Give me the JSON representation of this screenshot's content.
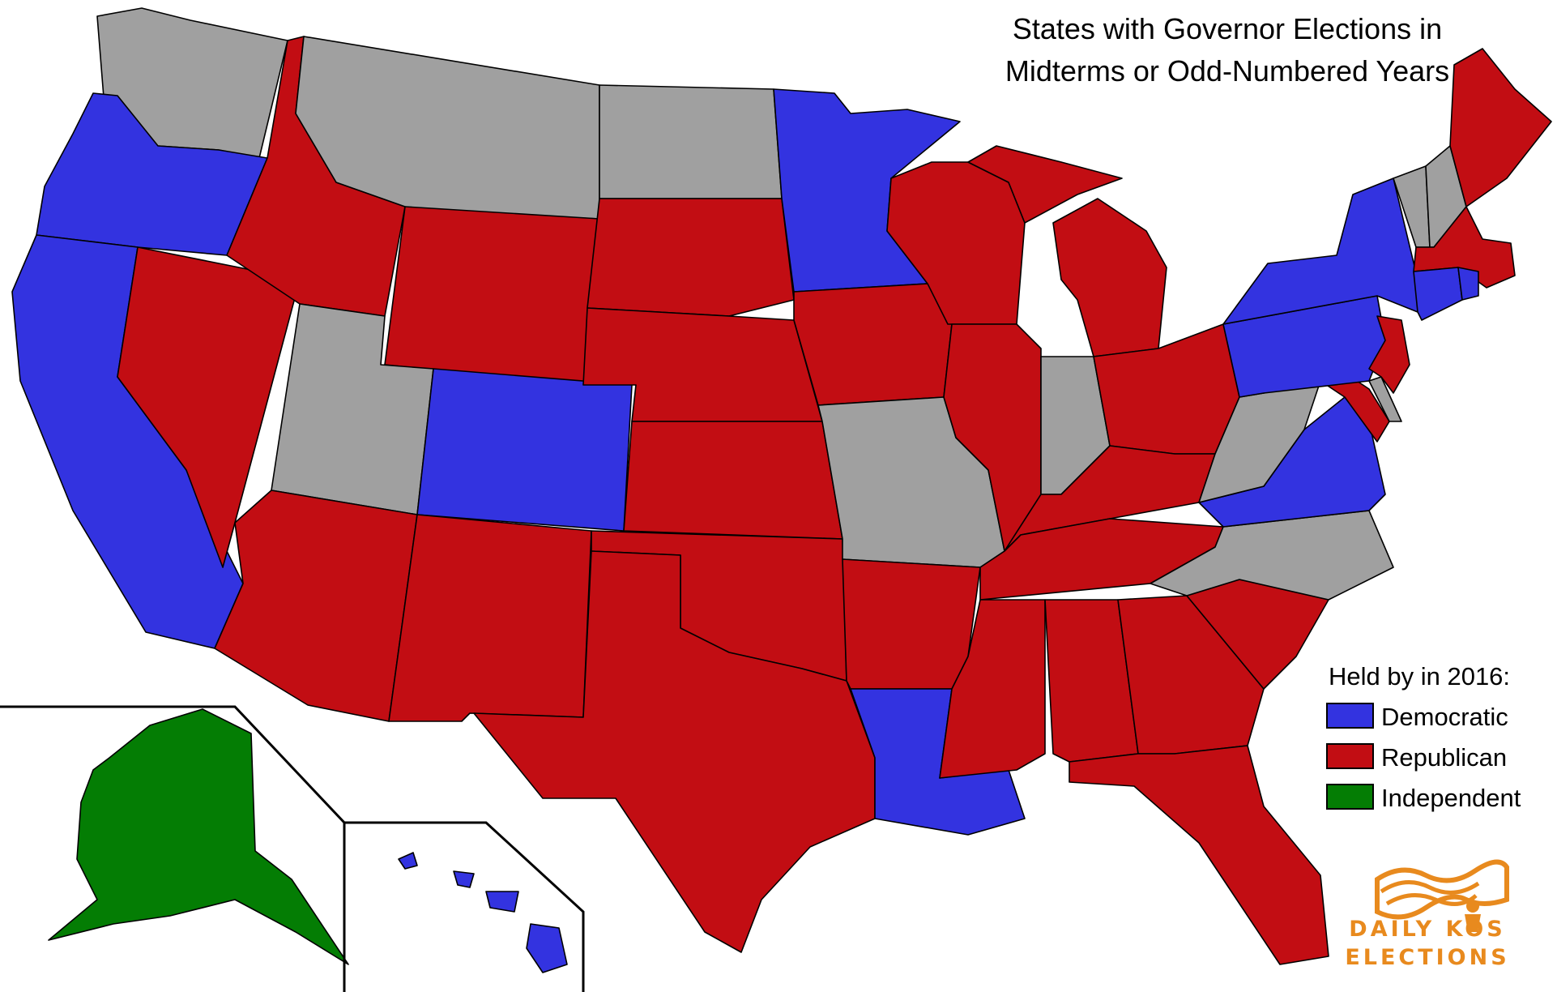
{
  "title": {
    "line1": "States with Governor Elections in",
    "line2": "Midterms or Odd-Numbered Years"
  },
  "legend": {
    "heading": "Held by in 2016:",
    "items": [
      {
        "key": "D",
        "label": "Democratic",
        "color": "#3333e0"
      },
      {
        "key": "R",
        "label": "Republican",
        "color": "#c20d13"
      },
      {
        "key": "I",
        "label": "Independent",
        "color": "#047d04"
      }
    ],
    "no_election_color": "#a0a0a0"
  },
  "states": {
    "WA": "N",
    "OR": "D",
    "CA": "D",
    "ID": "R",
    "NV": "R",
    "MT": "N",
    "WY": "R",
    "UT": "N",
    "AZ": "R",
    "CO": "D",
    "NM": "R",
    "ND": "N",
    "SD": "R",
    "NE": "R",
    "KS": "R",
    "OK": "R",
    "TX": "R",
    "MN": "D",
    "IA": "R",
    "MO": "N",
    "AR": "R",
    "LA": "D",
    "WI": "R",
    "IL": "R",
    "MI": "R",
    "IN": "N",
    "OH": "R",
    "KY": "R",
    "TN": "R",
    "MS": "R",
    "AL": "R",
    "GA": "R",
    "FL": "R",
    "SC": "R",
    "NC": "N",
    "VA": "D",
    "WV": "N",
    "PA": "D",
    "NY": "D",
    "VT": "N",
    "NH": "N",
    "ME": "R",
    "MA": "R",
    "CT": "D",
    "RI": "D",
    "NJ": "R",
    "DE": "N",
    "MD": "R",
    "AK": "I",
    "HI": "D"
  },
  "logo": {
    "line1": "DAILY KOS",
    "line2": "ELECTIONS",
    "color": "#e88a1e"
  }
}
